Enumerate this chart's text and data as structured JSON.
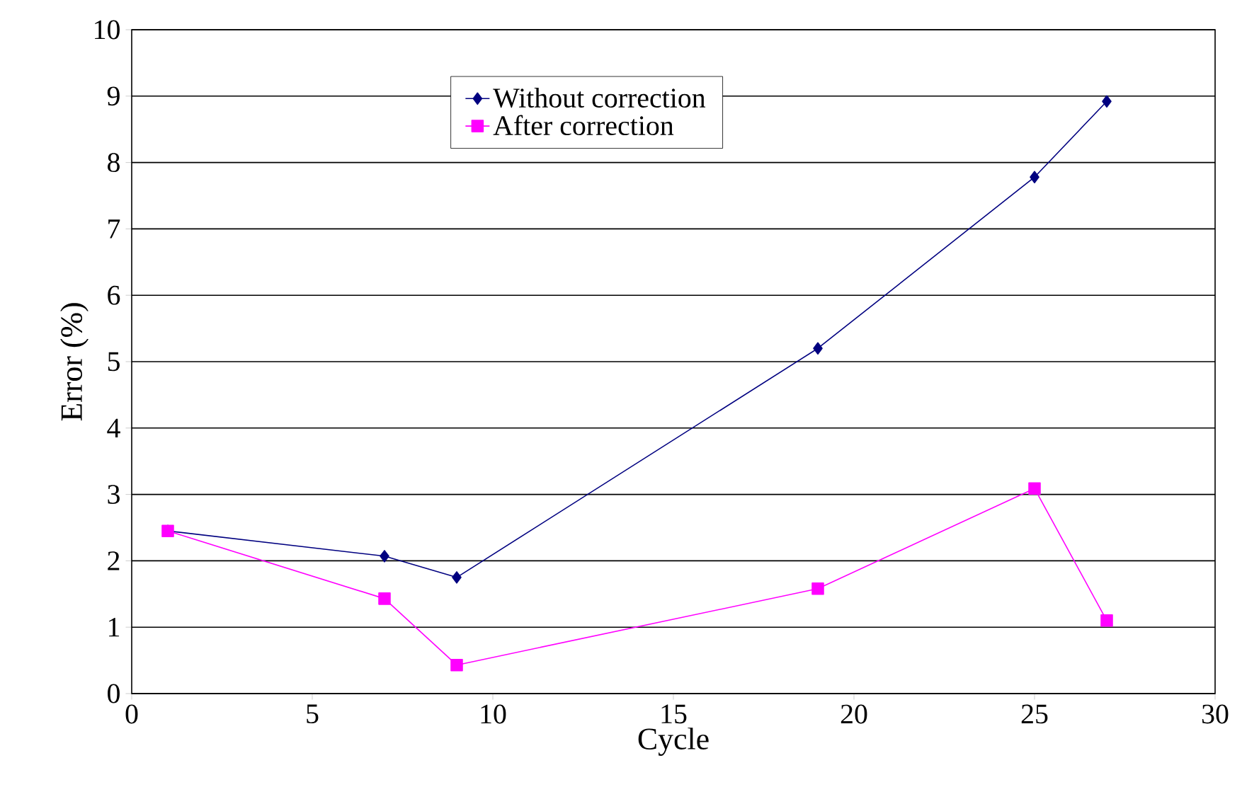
{
  "chart_data": {
    "type": "line",
    "xlabel": "Cycle",
    "ylabel": "Error (%)",
    "xlim": [
      0,
      30
    ],
    "ylim": [
      0,
      10
    ],
    "xticks": [
      0,
      5,
      10,
      15,
      20,
      25,
      30
    ],
    "yticks": [
      0,
      1,
      2,
      3,
      4,
      5,
      6,
      7,
      8,
      9,
      10
    ],
    "grid": "y",
    "legend": "top",
    "line_style": "solid",
    "series": [
      {
        "name": "Without correction",
        "color": "#000080",
        "marker": "diamond",
        "x": [
          1,
          7,
          9,
          19,
          25,
          27
        ],
        "values": [
          2.45,
          2.07,
          1.75,
          5.2,
          7.78,
          8.92
        ]
      },
      {
        "name": "After correction",
        "color": "#ff00ff",
        "marker": "square",
        "x": [
          1,
          7,
          9,
          19,
          25,
          27
        ],
        "values": [
          2.45,
          1.43,
          0.43,
          1.58,
          3.09,
          1.1
        ]
      }
    ]
  }
}
